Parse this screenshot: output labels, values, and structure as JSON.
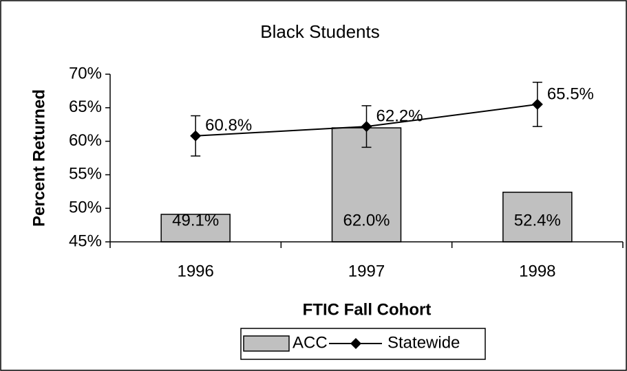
{
  "chart_data": {
    "type": "bar",
    "title": "Black Students",
    "xlabel": "FTIC Fall Cohort",
    "ylabel": "Percent Returned",
    "categories": [
      "1996",
      "1997",
      "1998"
    ],
    "series": [
      {
        "name": "ACC",
        "type": "bar",
        "color": "#c0c0c0",
        "values": [
          49.1,
          62.0,
          52.4
        ],
        "value_labels": [
          "49.1%",
          "62.0%",
          "52.4%"
        ]
      },
      {
        "name": "Statewide",
        "type": "line",
        "color": "#000000",
        "values": [
          60.8,
          62.2,
          65.5
        ],
        "value_labels": [
          "60.8%",
          "62.2%",
          "65.5%"
        ],
        "errors": [
          3.0,
          3.1,
          3.3
        ]
      }
    ],
    "ylim": [
      45,
      70
    ],
    "yticks": [
      {
        "value": 45,
        "label": "45%"
      },
      {
        "value": 50,
        "label": "50%"
      },
      {
        "value": 55,
        "label": "55%"
      },
      {
        "value": 60,
        "label": "60%"
      },
      {
        "value": 65,
        "label": "65%"
      },
      {
        "value": 70,
        "label": "70%"
      }
    ],
    "legend": "bottom"
  }
}
